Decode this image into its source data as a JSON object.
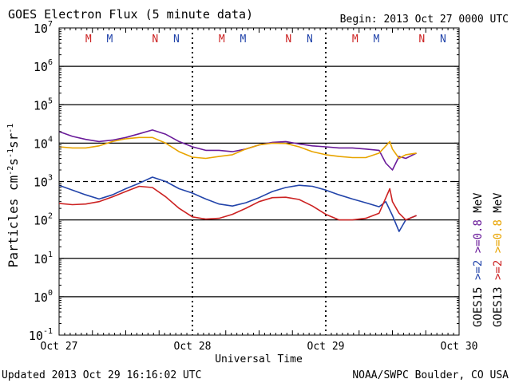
{
  "chart_data": {
    "type": "line",
    "title": "GOES Electron Flux (5 minute data)",
    "begin_label": "Begin: 2013 Oct 27 0000 UTC",
    "xlabel": "Universal Time",
    "ylabel_parts": {
      "base": "Particles cm",
      "e1": "-2",
      "s": "s",
      "e2": "-1",
      "sr": "sr",
      "e3": "-1"
    },
    "updated_label": "Updated 2013 Oct 29 16:16:02 UTC",
    "credit_label": "NOAA/SWPC Boulder, CO USA",
    "x_range_days": [
      0,
      3
    ],
    "x_ticks": [
      {
        "day": 0,
        "label": "Oct 27"
      },
      {
        "day": 1,
        "label": "Oct 28"
      },
      {
        "day": 2,
        "label": "Oct 29"
      },
      {
        "day": 3,
        "label": "Oct 30"
      }
    ],
    "y_log_range": [
      -1,
      7
    ],
    "y_ticks": [
      {
        "exp": 7,
        "base": "10",
        "sup": "7"
      },
      {
        "exp": 6,
        "base": "10",
        "sup": "6"
      },
      {
        "exp": 5,
        "base": "10",
        "sup": "5"
      },
      {
        "exp": 4,
        "base": "10",
        "sup": "4"
      },
      {
        "exp": 3,
        "base": "10",
        "sup": "3"
      },
      {
        "exp": 2,
        "base": "10",
        "sup": "2"
      },
      {
        "exp": 1,
        "base": "10",
        "sup": "1"
      },
      {
        "exp": 0,
        "base": "10",
        "sup": "0"
      },
      {
        "exp": -1,
        "base": "10",
        "sup": "-1"
      }
    ],
    "gridlines_log": [
      6,
      5,
      4,
      2,
      1,
      0
    ],
    "dashed_line_log": 3,
    "midnight_day_boundaries": [
      1,
      2
    ],
    "mn_markers": [
      {
        "label": "M",
        "day": 0.22,
        "color": "#cc2222"
      },
      {
        "label": "M",
        "day": 0.38,
        "color": "#2244aa"
      },
      {
        "label": "N",
        "day": 0.72,
        "color": "#cc2222"
      },
      {
        "label": "N",
        "day": 0.88,
        "color": "#2244aa"
      },
      {
        "label": "M",
        "day": 1.22,
        "color": "#cc2222"
      },
      {
        "label": "M",
        "day": 1.38,
        "color": "#2244aa"
      },
      {
        "label": "N",
        "day": 1.72,
        "color": "#cc2222"
      },
      {
        "label": "N",
        "day": 1.88,
        "color": "#2244aa"
      },
      {
        "label": "M",
        "day": 2.22,
        "color": "#cc2222"
      },
      {
        "label": "M",
        "day": 2.38,
        "color": "#2244aa"
      },
      {
        "label": "N",
        "day": 2.72,
        "color": "#cc2222"
      },
      {
        "label": "N",
        "day": 2.88,
        "color": "#2244aa"
      }
    ],
    "legend": {
      "col1": [
        {
          "text": "GOES15",
          "color": "#000000"
        },
        {
          "text": ">=2",
          "color": "#2244aa"
        },
        {
          "text": ">=0.8",
          "color": "#6a1b9a"
        },
        {
          "text": "MeV",
          "color": "#000000"
        }
      ],
      "col2": [
        {
          "text": "GOES13",
          "color": "#000000"
        },
        {
          "text": ">=2",
          "color": "#cc2222"
        },
        {
          "text": ">=0.8",
          "color": "#e8a400"
        },
        {
          "text": "MeV",
          "color": "#000000"
        }
      ]
    },
    "series": [
      {
        "name": "GOES15 >=0.8 MeV",
        "color": "#6a1b9a",
        "x": [
          0,
          0.1,
          0.2,
          0.3,
          0.4,
          0.5,
          0.6,
          0.7,
          0.8,
          0.9,
          1.0,
          1.1,
          1.2,
          1.3,
          1.4,
          1.5,
          1.6,
          1.7,
          1.8,
          1.9,
          2.0,
          2.1,
          2.2,
          2.3,
          2.4,
          2.45,
          2.5,
          2.55,
          2.6,
          2.68
        ],
        "y": [
          20000,
          15000,
          12500,
          11000,
          12000,
          14000,
          17500,
          22000,
          17000,
          11000,
          8000,
          6500,
          6500,
          6000,
          7000,
          9000,
          10500,
          11000,
          9500,
          8500,
          8000,
          7500,
          7500,
          7000,
          6500,
          3000,
          2000,
          4500,
          4000,
          5500
        ]
      },
      {
        "name": "GOES13 >=0.8 MeV",
        "color": "#e8a400",
        "x": [
          0,
          0.1,
          0.2,
          0.3,
          0.4,
          0.5,
          0.6,
          0.7,
          0.8,
          0.9,
          1.0,
          1.1,
          1.2,
          1.3,
          1.4,
          1.5,
          1.6,
          1.7,
          1.8,
          1.9,
          2.0,
          2.1,
          2.2,
          2.3,
          2.4,
          2.48,
          2.5,
          2.55,
          2.6,
          2.68
        ],
        "y": [
          8000,
          7500,
          7500,
          8500,
          11000,
          13000,
          14000,
          14000,
          10000,
          6000,
          4300,
          4000,
          4500,
          5000,
          7000,
          9000,
          10000,
          9800,
          8000,
          6000,
          5000,
          4500,
          4200,
          4200,
          5500,
          11000,
          7000,
          4000,
          5000,
          5500
        ]
      },
      {
        "name": "GOES15 >=2 MeV",
        "color": "#2244aa",
        "x": [
          0,
          0.1,
          0.2,
          0.3,
          0.4,
          0.5,
          0.6,
          0.7,
          0.8,
          0.9,
          1.0,
          1.1,
          1.2,
          1.3,
          1.4,
          1.5,
          1.6,
          1.7,
          1.8,
          1.9,
          2.0,
          2.1,
          2.2,
          2.3,
          2.4,
          2.45,
          2.5,
          2.55,
          2.6,
          2.68
        ],
        "y": [
          800,
          600,
          450,
          350,
          450,
          650,
          900,
          1300,
          1000,
          650,
          500,
          350,
          260,
          230,
          280,
          380,
          550,
          700,
          800,
          750,
          600,
          450,
          350,
          280,
          220,
          300,
          130,
          50,
          100,
          130
        ]
      },
      {
        "name": "GOES13 >=2 MeV",
        "color": "#cc2222",
        "x": [
          0,
          0.1,
          0.2,
          0.3,
          0.4,
          0.5,
          0.6,
          0.7,
          0.8,
          0.9,
          1.0,
          1.1,
          1.2,
          1.3,
          1.4,
          1.5,
          1.6,
          1.7,
          1.8,
          1.9,
          2.0,
          2.1,
          2.2,
          2.3,
          2.4,
          2.48,
          2.5,
          2.55,
          2.6,
          2.68
        ],
        "y": [
          270,
          250,
          260,
          300,
          400,
          550,
          750,
          700,
          400,
          200,
          120,
          105,
          110,
          140,
          200,
          300,
          380,
          390,
          340,
          230,
          140,
          100,
          100,
          110,
          150,
          650,
          300,
          150,
          100,
          130
        ]
      }
    ]
  }
}
